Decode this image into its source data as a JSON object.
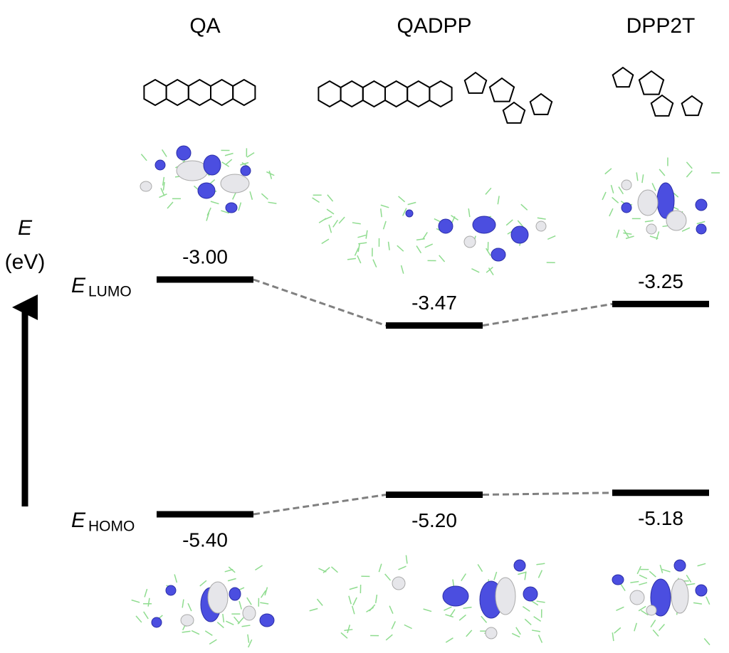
{
  "chart_data": {
    "type": "energy-level",
    "y_label": "E",
    "y_unit": "(eV)",
    "categories": [
      "QA",
      "QADPP",
      "DPP2T"
    ],
    "series": [
      {
        "name": "LUMO",
        "color": "#000000",
        "values": [
          -3.0,
          -3.47,
          -3.25
        ],
        "value_labels": [
          "-3.00",
          "-3.47",
          "-3.25"
        ]
      },
      {
        "name": "HOMO",
        "color": "#000000",
        "values": [
          -5.4,
          -5.2,
          -5.18
        ],
        "value_labels": [
          "-5.40",
          "-5.20",
          "-5.18"
        ]
      }
    ],
    "connector_color": "#808080"
  }
}
